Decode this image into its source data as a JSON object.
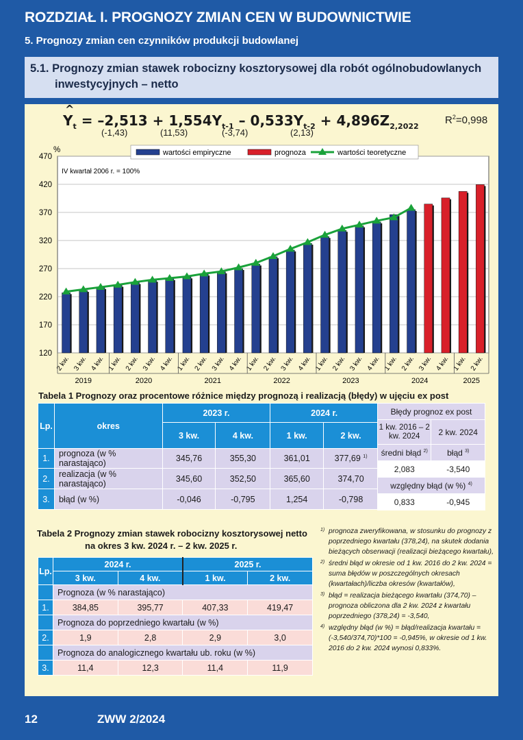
{
  "header": {
    "chapter": "ROZDZIAŁ I.  PROGNOZY ZMIAN CEN W BUDOWNICTWIE",
    "section": "5.   Prognozy zmian cen czynników produkcji budowlanej",
    "subsection_line1": "5.1. Prognozy zmian stawek robocizny kosztorysowej dla robót ogólnobudowlanych",
    "subsection_line2": "inwestycyjnych – netto"
  },
  "formula": {
    "text_a": "Y",
    "sub_a": "t",
    "text_b": " = –2,513 + 1,554Y",
    "sub_b": "t-1",
    "text_c": " – 0,533Y",
    "sub_c": "t-2",
    "text_d": " + 4,896Z",
    "sub_d": "2,2022",
    "coef1": "(-1,43)",
    "coef2": "(11,53)",
    "coef3": "(-3,74)",
    "coef4": "(2,13)",
    "r2_label": "R",
    "r2_sup": "2",
    "r2_value": "=0,998"
  },
  "chart_data": {
    "type": "bar",
    "ylabel": "%",
    "annotation": "IV kwartał 2006 r. = 100%",
    "ylim": [
      120,
      470
    ],
    "yticks": [
      120,
      170,
      220,
      270,
      320,
      370,
      420,
      470
    ],
    "legend": [
      "wartości empiryczne",
      "prognoza",
      "wartości teoretyczne"
    ],
    "legend_position": "top",
    "colors": {
      "empirical": "#24408f",
      "forecast": "#d8202a",
      "theoretical": "#1aa23a"
    },
    "categories": [
      "2 kw.",
      "3 kw.",
      "4 kw.",
      "1 kw.",
      "2 kw.",
      "3 kw.",
      "4 kw.",
      "1 kw.",
      "2 kw.",
      "3 kw.",
      "4 kw.",
      "1 kw.",
      "2 kw.",
      "3 kw.",
      "4 kw.",
      "1 kw.",
      "2 kw.",
      "3 kw.",
      "4 kw.",
      "1 kw.",
      "2 kw.",
      "3 kw.",
      "4 kw.",
      "1 kw.",
      "2 kw."
    ],
    "years": [
      {
        "label": "2019",
        "start": 0,
        "end": 2
      },
      {
        "label": "2020",
        "start": 3,
        "end": 6
      },
      {
        "label": "2021",
        "start": 7,
        "end": 10
      },
      {
        "label": "2022",
        "start": 11,
        "end": 14
      },
      {
        "label": "2023",
        "start": 15,
        "end": 18
      },
      {
        "label": "2024",
        "start": 19,
        "end": 22
      },
      {
        "label": "2025",
        "start": 23,
        "end": 24
      }
    ],
    "series": [
      {
        "name": "wartości empiryczne",
        "values": [
          227,
          231,
          236,
          240,
          245,
          249,
          252,
          255,
          260,
          264,
          270,
          278,
          291,
          303,
          315,
          327,
          338,
          346,
          353,
          366,
          375,
          null,
          null,
          null,
          null
        ]
      },
      {
        "name": "prognoza",
        "values": [
          null,
          null,
          null,
          null,
          null,
          null,
          null,
          null,
          null,
          null,
          null,
          null,
          null,
          null,
          null,
          null,
          null,
          null,
          null,
          null,
          null,
          384.85,
          395.77,
          407.33,
          419.47
        ]
      },
      {
        "name": "wartości teoretyczne",
        "values": [
          229,
          233,
          237,
          241,
          246,
          250,
          253,
          256,
          261,
          265,
          272,
          280,
          292,
          305,
          317,
          330,
          341,
          348,
          355,
          361,
          378,
          null,
          null,
          null,
          null
        ]
      }
    ]
  },
  "table1": {
    "title": "Tabela 1  Prognozy oraz procentowe różnice między prognozą i realizacją (błędy) w ujęciu ex post",
    "lp": "Lp.",
    "okres": "okres",
    "year1": "2023 r.",
    "year2": "2024 r.",
    "cols": [
      "3 kw.",
      "4 kw.",
      "1 kw.",
      "2 kw."
    ],
    "rows": [
      {
        "no": "1.",
        "label": "prognoza (w % narastająco)",
        "values": [
          "345,76",
          "355,30",
          "361,01",
          "377,69"
        ],
        "last_sup": "1)"
      },
      {
        "no": "2.",
        "label": "realizacja (w % narastająco)",
        "values": [
          "345,60",
          "352,50",
          "365,60",
          "374,70"
        ],
        "last_sup": ""
      },
      {
        "no": "3.",
        "label": "błąd (w %)",
        "values": [
          "-0,046",
          "-0,795",
          "1,254",
          "-0,798"
        ],
        "last_sup": ""
      }
    ],
    "errors": {
      "title": "Błędy prognoz ex post",
      "col1": "1 kw. 2016 – 2 kw. 2024",
      "col2": "2 kw. 2024",
      "mean_label": "średni błąd",
      "mean_sup": "2)",
      "err_label": "błąd",
      "err_sup": "3)",
      "mean_val": "2,083",
      "err_val": "-3,540",
      "rel_label": "względny błąd (w %)",
      "rel_sup": "4)",
      "rel_val1": "0,833",
      "rel_val2": "-0,945"
    }
  },
  "table2": {
    "title1": "Tabela 2  Prognozy zmian stawek robocizny kosztorysowej netto",
    "title2": "na okres 3 kw. 2024 r. – 2 kw. 2025 r.",
    "lp": "Lp.",
    "year1": "2024 r.",
    "year2": "2025 r.",
    "cols": [
      "3 kw.",
      "4 kw.",
      "1 kw.",
      "2 kw."
    ],
    "groups": [
      {
        "label": "Prognoza (w % narastająco)",
        "no": "1.",
        "values": [
          "384,85",
          "395,77",
          "407,33",
          "419,47"
        ]
      },
      {
        "label": "Prognoza do poprzedniego kwartału (w %)",
        "no": "2.",
        "values": [
          "1,9",
          "2,8",
          "2,9",
          "3,0"
        ]
      },
      {
        "label": "Prognoza do analogicznego kwartału ub. roku (w %)",
        "no": "3.",
        "values": [
          "11,4",
          "12,3",
          "11,4",
          "11,9"
        ]
      }
    ]
  },
  "notes": [
    {
      "sup": "1)",
      "text": "prognoza zweryfikowana, w stosunku do prognozy z poprzedniego kwartału (378,24), na skutek dodania bieżących obserwacji (realizacji bieżącego kwartału),"
    },
    {
      "sup": "2)",
      "text": "średni błąd w okresie od 1 kw. 2016 do 2 kw. 2024 = suma błędów w poszczególnych okresach (kwartałach)/liczba okresów (kwartałów),"
    },
    {
      "sup": "3)",
      "text": "błąd = realizacja bieżącego kwartału (374,70) – prognoza obliczona dla 2 kw. 2024 z kwartału poprzedniego (378,24) = -3,540,"
    },
    {
      "sup": "4)",
      "text": "względny błąd (w %) = błąd/realizacja kwartału = (-3,540/374,70)*100 = -0,945%, w okresie od 1 kw. 2016 do 2 kw. 2024 wynosi 0,833%."
    }
  ],
  "footer": {
    "page": "12",
    "publication": "ZWW 2/2024"
  }
}
